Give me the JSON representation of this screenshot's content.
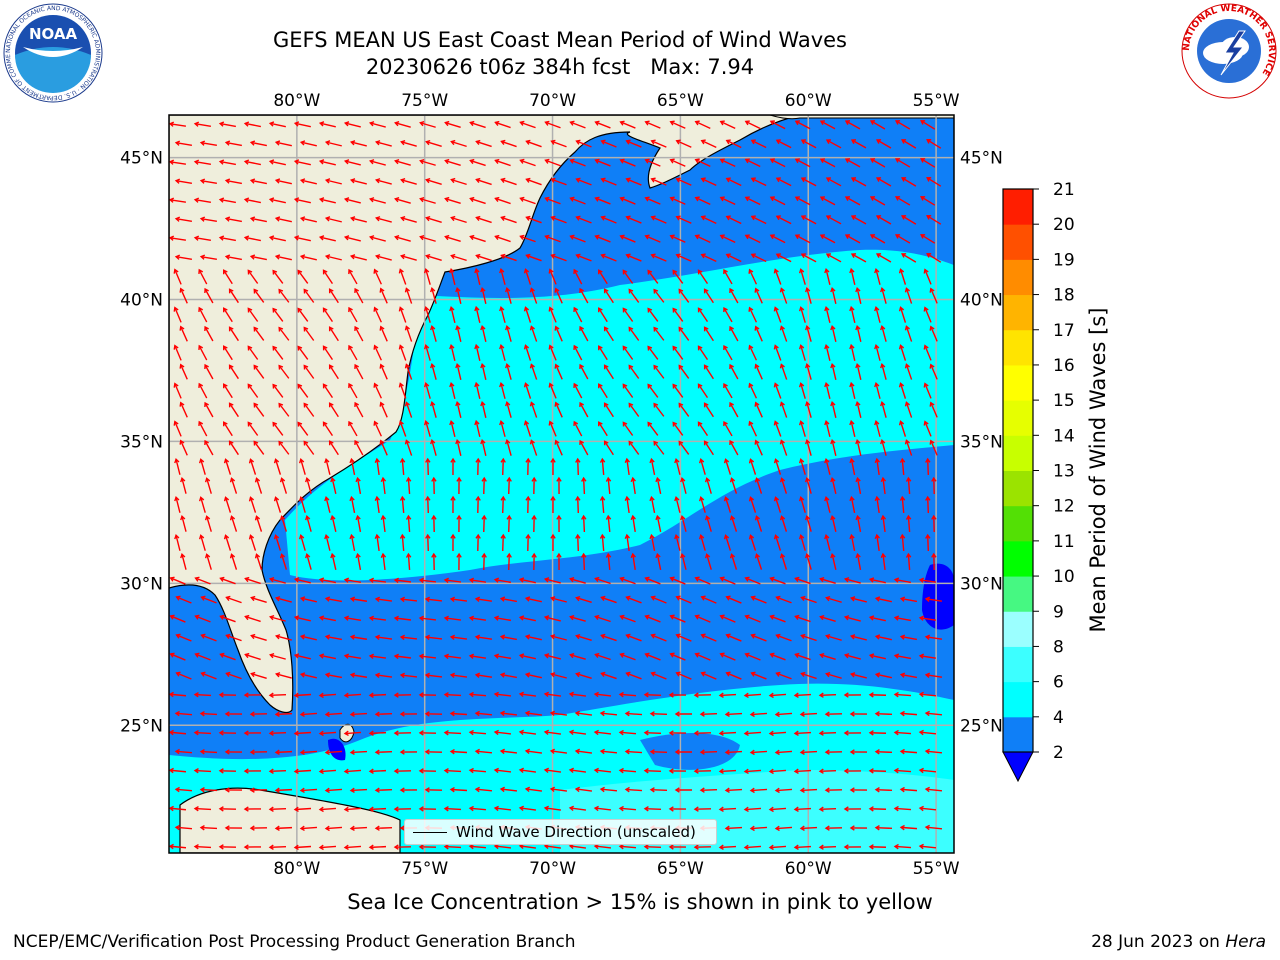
{
  "title": {
    "line1": "GEFS MEAN US East Coast Mean Period of Wind Waves",
    "line2": "20230626 t06z 384h fcst   Max: 7.94"
  },
  "logos": {
    "left": {
      "text": "NOAA",
      "ring_text": "NATIONAL OCEANIC AND ATMOSPHERIC ADMINISTRATION · U.S. DEPARTMENT OF COMMERCE"
    },
    "right": {
      "ring_text": "NATIONAL WEATHER SERVICE"
    }
  },
  "map": {
    "lon_labels": [
      "80°W",
      "75°W",
      "70°W",
      "65°W",
      "60°W",
      "55°W"
    ],
    "lat_labels": [
      "45°N",
      "40°N",
      "35°N",
      "30°N",
      "25°N"
    ],
    "lon_range": [
      -85,
      -54.3
    ],
    "lat_range": [
      20.5,
      46.5
    ],
    "colors": {
      "land": "#efeedc",
      "coast": "#000000",
      "grid": "#b0b0b0",
      "arrow": "#ff0000"
    }
  },
  "legend": {
    "label": "Wind Wave Direction (unscaled)"
  },
  "colorbar": {
    "label": "Mean Period of Wind Waves [s]",
    "ticks": [
      "2",
      "4",
      "6",
      "8",
      "9",
      "10",
      "11",
      "12",
      "13",
      "14",
      "15",
      "16",
      "17",
      "18",
      "19",
      "20",
      "21"
    ],
    "colors": [
      "#0f7ff7",
      "#00ffff",
      "#3cffff",
      "#9bffff",
      "#46f882",
      "#00ff00",
      "#53e005",
      "#9be300",
      "#c8ff00",
      "#e6ff00",
      "#ffff00",
      "#ffe400",
      "#ffb400",
      "#ff8c00",
      "#ff5000",
      "#ff1e00"
    ],
    "under_color": "#0000ff"
  },
  "bottom_note": "Sea Ice Concentration > 15% is shown in pink to yellow",
  "credits": {
    "left": "NCEP/EMC/Verification Post Processing Product Generation Branch",
    "right_prefix": "28 Jun 2023 on ",
    "right_host": "Hera"
  }
}
